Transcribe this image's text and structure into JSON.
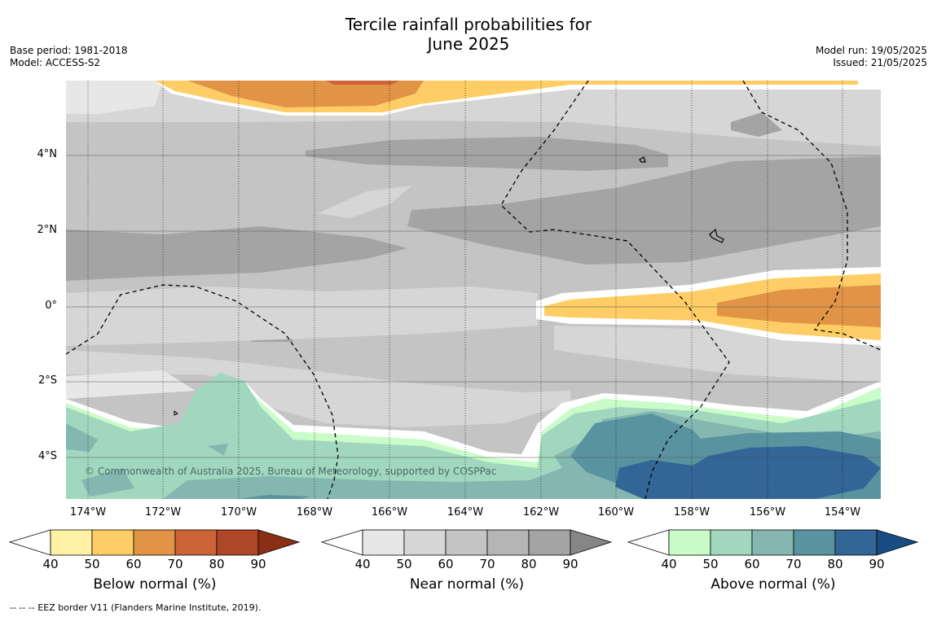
{
  "title_line1": "Tercile rainfall probabilities for",
  "title_line2": "June 2025",
  "meta": {
    "base_period": "Base period: 1981-2018",
    "model": "Model: ACCESS-S2",
    "model_run": "Model run: 19/05/2025",
    "issued": "Issued: 21/05/2025"
  },
  "map": {
    "lon_range": [
      -174.6,
      -152.9
    ],
    "lat_range": [
      -5.0,
      6.0
    ],
    "lat_ticks": [
      "4°N",
      "2°N",
      "0°",
      "2°S",
      "4°S"
    ],
    "lon_ticks": [
      "174°W",
      "172°W",
      "170°W",
      "168°W",
      "166°W",
      "164°W",
      "162°W",
      "160°W",
      "158°W",
      "156°W",
      "154°W"
    ]
  },
  "copyright": "© Commonwealth of Australia 2025, Bureau of Meteorology, supported by COSPPac",
  "footnote": "--  --  -- EEZ border V11 (Flanders Marine Institute, 2019).",
  "colorbars": [
    {
      "label": "Below normal (%)",
      "ticks": [
        "40",
        "50",
        "60",
        "70",
        "80",
        "90"
      ],
      "colors": [
        "#ffffff",
        "#fff1a6",
        "#fecd65",
        "#e19446",
        "#cd6436",
        "#af4627",
        "#8b2e16"
      ]
    },
    {
      "label": "Near normal (%)",
      "ticks": [
        "40",
        "50",
        "60",
        "70",
        "80",
        "90"
      ],
      "colors": [
        "#ffffff",
        "#e7e7e7",
        "#d6d6d6",
        "#c4c4c4",
        "#b5b5b5",
        "#a4a4a4",
        "#868686"
      ]
    },
    {
      "label": "Above normal (%)",
      "ticks": [
        "40",
        "50",
        "60",
        "70",
        "80",
        "90"
      ],
      "colors": [
        "#ffffff",
        "#c9fcc9",
        "#a2d7bf",
        "#83b7b0",
        "#5a93a0",
        "#336597",
        "#174d82"
      ]
    }
  ]
}
